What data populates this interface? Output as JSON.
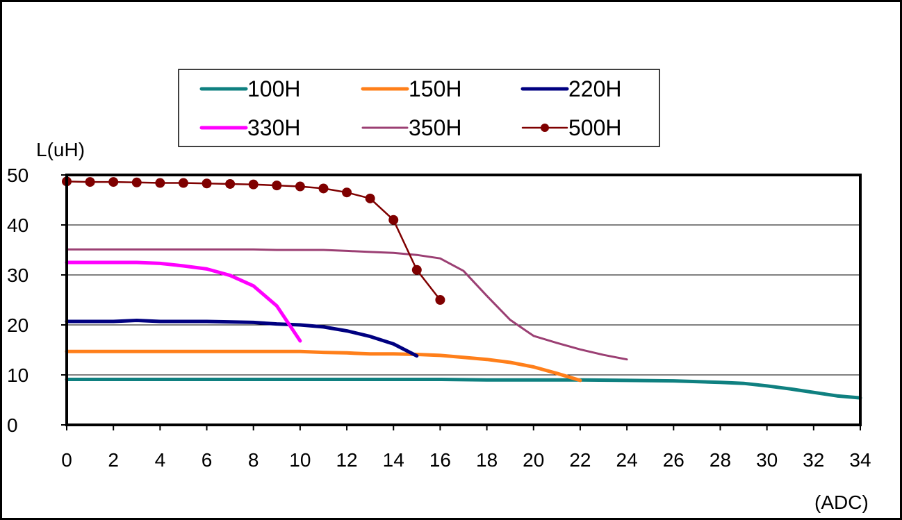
{
  "chart_data": {
    "type": "line",
    "title": "",
    "ylabel": "L(uH)",
    "xlabel": "(ADC)",
    "xlim": [
      0,
      34
    ],
    "ylim": [
      0,
      50
    ],
    "xticks": [
      0,
      2,
      4,
      6,
      8,
      10,
      12,
      14,
      16,
      18,
      20,
      22,
      24,
      26,
      28,
      30,
      32,
      34
    ],
    "yticks": [
      0,
      10,
      20,
      30,
      40,
      50
    ],
    "grid": "horizontal",
    "legend_position": "top",
    "series": [
      {
        "name": "100H",
        "color": "#0f8080",
        "markers": false,
        "points": [
          [
            0,
            9.1
          ],
          [
            2,
            9.1
          ],
          [
            4,
            9.1
          ],
          [
            6,
            9.1
          ],
          [
            8,
            9.1
          ],
          [
            10,
            9.1
          ],
          [
            12,
            9.1
          ],
          [
            14,
            9.1
          ],
          [
            16,
            9.1
          ],
          [
            18,
            9.0
          ],
          [
            20,
            9.0
          ],
          [
            22,
            9.0
          ],
          [
            24,
            8.9
          ],
          [
            26,
            8.8
          ],
          [
            28,
            8.5
          ],
          [
            29,
            8.3
          ],
          [
            30,
            7.8
          ],
          [
            31,
            7.2
          ],
          [
            32,
            6.5
          ],
          [
            33,
            5.8
          ],
          [
            34,
            5.4
          ]
        ]
      },
      {
        "name": "150H",
        "color": "#ff7f1a",
        "markers": false,
        "points": [
          [
            0,
            14.7
          ],
          [
            2,
            14.7
          ],
          [
            4,
            14.7
          ],
          [
            6,
            14.7
          ],
          [
            8,
            14.7
          ],
          [
            10,
            14.7
          ],
          [
            11,
            14.5
          ],
          [
            12,
            14.4
          ],
          [
            13,
            14.2
          ],
          [
            14,
            14.2
          ],
          [
            15,
            14.1
          ],
          [
            16,
            13.9
          ],
          [
            17,
            13.5
          ],
          [
            18,
            13.1
          ],
          [
            19,
            12.5
          ],
          [
            20,
            11.6
          ],
          [
            21,
            10.3
          ],
          [
            22,
            8.9
          ]
        ]
      },
      {
        "name": "220H",
        "color": "#000080",
        "markers": false,
        "points": [
          [
            0,
            20.7
          ],
          [
            2,
            20.7
          ],
          [
            3,
            20.9
          ],
          [
            4,
            20.7
          ],
          [
            6,
            20.7
          ],
          [
            8,
            20.5
          ],
          [
            9,
            20.2
          ],
          [
            10,
            20.0
          ],
          [
            11,
            19.6
          ],
          [
            12,
            18.8
          ],
          [
            13,
            17.7
          ],
          [
            14,
            16.2
          ],
          [
            15,
            13.8
          ]
        ]
      },
      {
        "name": "330H",
        "color": "#ff00ff",
        "markers": false,
        "points": [
          [
            0,
            32.5
          ],
          [
            1,
            32.5
          ],
          [
            2,
            32.5
          ],
          [
            3,
            32.5
          ],
          [
            4,
            32.3
          ],
          [
            5,
            31.8
          ],
          [
            6,
            31.2
          ],
          [
            7,
            29.9
          ],
          [
            8,
            27.8
          ],
          [
            9,
            23.8
          ],
          [
            10,
            16.8
          ]
        ]
      },
      {
        "name": "350H",
        "color": "#9b3f73",
        "markers": false,
        "points": [
          [
            0,
            35.1
          ],
          [
            2,
            35.1
          ],
          [
            4,
            35.1
          ],
          [
            6,
            35.1
          ],
          [
            8,
            35.1
          ],
          [
            9,
            35.0
          ],
          [
            10,
            35.0
          ],
          [
            11,
            35.0
          ],
          [
            12,
            34.8
          ],
          [
            13,
            34.6
          ],
          [
            14,
            34.4
          ],
          [
            15,
            34.0
          ],
          [
            16,
            33.3
          ],
          [
            17,
            30.8
          ],
          [
            18,
            25.8
          ],
          [
            19,
            21.0
          ],
          [
            20,
            17.8
          ],
          [
            21,
            16.4
          ],
          [
            22,
            15.1
          ],
          [
            23,
            14.0
          ],
          [
            24,
            13.1
          ]
        ]
      },
      {
        "name": "500H",
        "color": "#7f0000",
        "markers": true,
        "points": [
          [
            0,
            48.7
          ],
          [
            1,
            48.6
          ],
          [
            2,
            48.6
          ],
          [
            3,
            48.5
          ],
          [
            4,
            48.4
          ],
          [
            5,
            48.4
          ],
          [
            6,
            48.3
          ],
          [
            7,
            48.2
          ],
          [
            8,
            48.1
          ],
          [
            9,
            47.9
          ],
          [
            10,
            47.7
          ],
          [
            11,
            47.3
          ],
          [
            12,
            46.5
          ],
          [
            13,
            45.3
          ],
          [
            14,
            41.0
          ],
          [
            15,
            31.0
          ],
          [
            16,
            25.0
          ]
        ]
      }
    ]
  }
}
